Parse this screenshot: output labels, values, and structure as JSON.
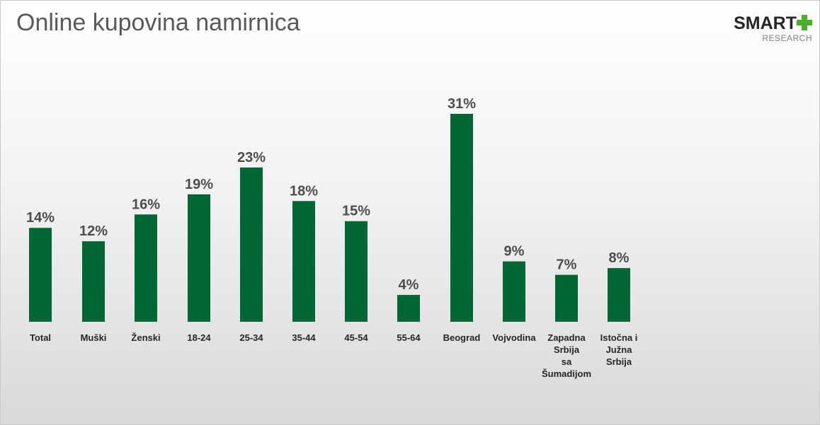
{
  "title": "Online kupovina namirnica",
  "logo": {
    "word": "SMART",
    "subtitle": "RESEARCH",
    "plus_color": "#4caf2a"
  },
  "colors": {
    "bar": "#006633"
  },
  "chart_data": {
    "type": "bar",
    "title": "Online kupovina namirnica",
    "categories": [
      "Total",
      "Muški",
      "Ženski",
      "18-24",
      "25-34",
      "35-44",
      "45-54",
      "55-64",
      "Beograd",
      "Vojvodina",
      "Zapadna Srbija sa Šumadijom",
      "Istočna i Južna Srbija"
    ],
    "category_lines": [
      [
        "Total"
      ],
      [
        "Muški"
      ],
      [
        "Ženski"
      ],
      [
        "18-24"
      ],
      [
        "25-34"
      ],
      [
        "35-44"
      ],
      [
        "45-54"
      ],
      [
        "55-64"
      ],
      [
        "Beograd"
      ],
      [
        "Vojvodina"
      ],
      [
        "Zapadna",
        "Srbija",
        "sa",
        "Šumadijom"
      ],
      [
        "Istočna i",
        "Južna",
        "Srbija"
      ]
    ],
    "groups": [
      {
        "categories": [
          "Total"
        ]
      },
      {
        "categories": [
          "Muški",
          "Ženski"
        ]
      },
      {
        "categories": [
          "18-24",
          "25-34",
          "35-44",
          "45-54",
          "55-64"
        ]
      },
      {
        "categories": [
          "Beograd",
          "Vojvodina",
          "Zapadna Srbija sa Šumadijom",
          "Istočna i Južna Srbija"
        ]
      }
    ],
    "values": [
      14,
      12,
      16,
      19,
      23,
      18,
      15,
      4,
      31,
      9,
      7,
      8
    ],
    "value_labels": [
      "14%",
      "12%",
      "16%",
      "19%",
      "23%",
      "18%",
      "15%",
      "4%",
      "31%",
      "9%",
      "7%",
      "8%"
    ],
    "unit": "%",
    "xlabel": "",
    "ylabel": "",
    "ylim": [
      0,
      31
    ],
    "grid": false,
    "legend": "none"
  }
}
